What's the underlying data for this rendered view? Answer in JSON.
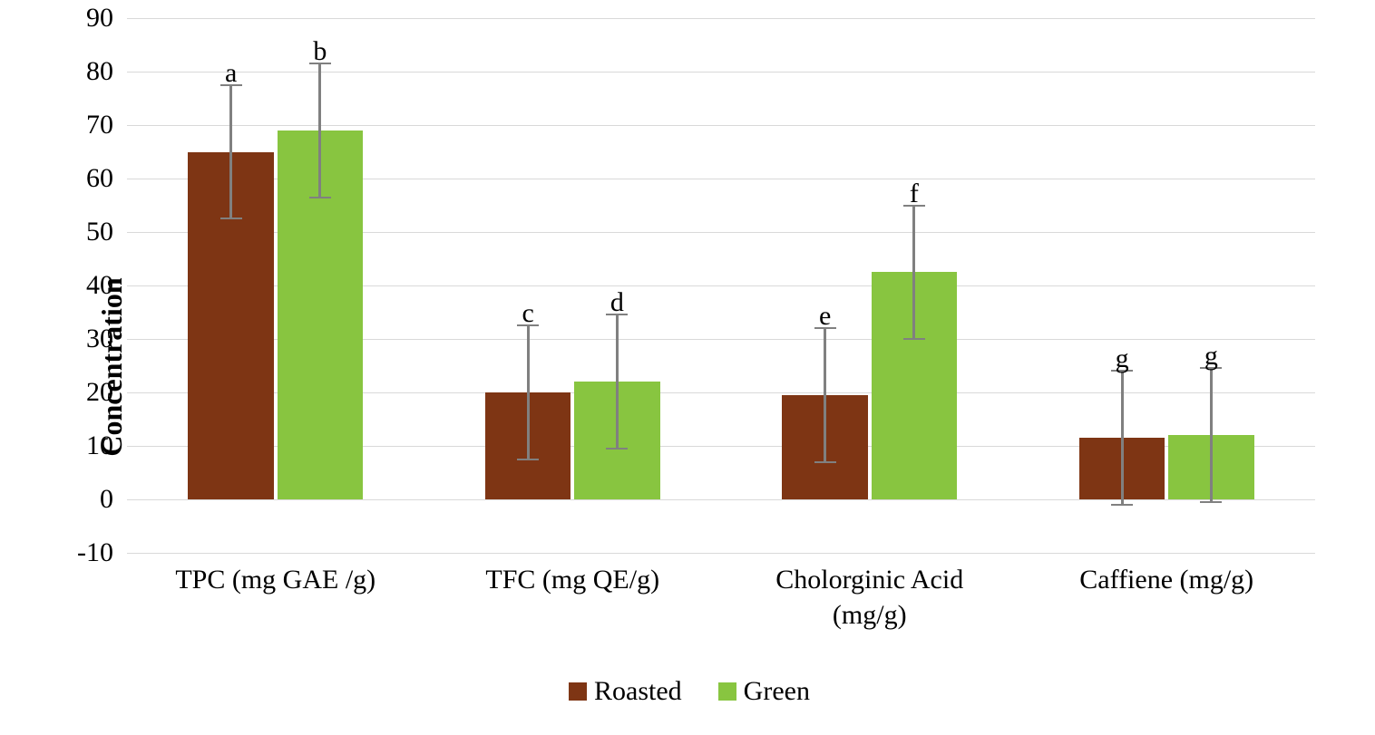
{
  "chart": {
    "type": "bar",
    "ylabel": "Concentration",
    "ylabel_fontsize": 32,
    "ylabel_fontweight": "bold",
    "tick_fontsize": 30,
    "letter_fontsize": 30,
    "ylim": [
      -10,
      90
    ],
    "ytick_step": 10,
    "yticks": [
      -10,
      0,
      10,
      20,
      30,
      40,
      50,
      60,
      70,
      80,
      90
    ],
    "categories": [
      {
        "label": "TPC (mg GAE /g)",
        "lines": [
          "TPC (mg GAE /g)"
        ]
      },
      {
        "label": "TFC (mg QE/g)",
        "lines": [
          "TFC (mg QE/g)"
        ]
      },
      {
        "label": "Cholorginic Acid (mg/g)",
        "lines": [
          "Cholorginic Acid",
          "(mg/g)"
        ]
      },
      {
        "label": "Caffiene (mg/g)",
        "lines": [
          "Caffiene (mg/g)"
        ]
      }
    ],
    "series": [
      {
        "name": "Roasted",
        "color": "#7e3514"
      },
      {
        "name": "Green",
        "color": "#88c540"
      }
    ],
    "data": [
      {
        "roasted": 65,
        "green": 69,
        "roasted_err": 12.5,
        "green_err": 12.5,
        "roasted_letter": "a",
        "green_letter": "b"
      },
      {
        "roasted": 20,
        "green": 22,
        "roasted_err": 12.5,
        "green_err": 12.5,
        "roasted_letter": "c",
        "green_letter": "d"
      },
      {
        "roasted": 19.5,
        "green": 42.5,
        "roasted_err": 12.5,
        "green_err": 12.5,
        "roasted_letter": "e",
        "green_letter": "f"
      },
      {
        "roasted": 11.5,
        "green": 12,
        "roasted_err": 12.5,
        "green_err": 12.5,
        "roasted_letter": "g",
        "green_letter": "g"
      }
    ],
    "bar_width_pct": 7.2,
    "bar_gap_pct": 0.3,
    "group_gap_pct": 25,
    "background_color": "#ffffff",
    "grid_color": "#d9d9d9",
    "error_bar_color": "#808080",
    "axis_color": "#000000"
  },
  "legend": {
    "items": [
      {
        "label": "Roasted",
        "color": "#7e3514"
      },
      {
        "label": "Green",
        "color": "#88c540"
      }
    ]
  }
}
